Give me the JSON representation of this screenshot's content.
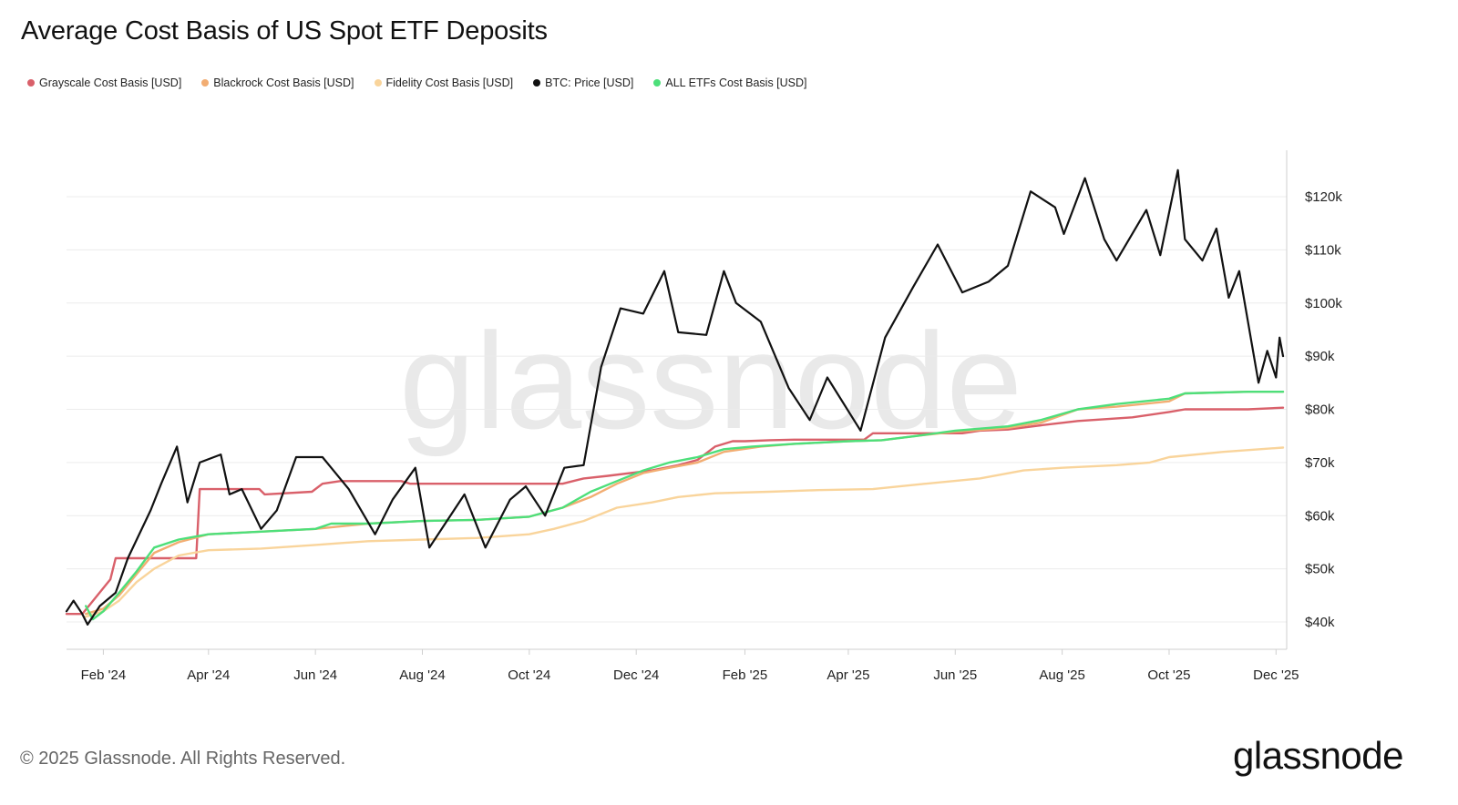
{
  "title": "Average Cost Basis of US Spot ETF Deposits",
  "legend": [
    {
      "label": "Grayscale Cost Basis [USD]",
      "color": "#d9606a"
    },
    {
      "label": "Blackrock Cost Basis [USD]",
      "color": "#f2ad72"
    },
    {
      "label": "Fidelity Cost Basis [USD]",
      "color": "#f9d49b"
    },
    {
      "label": "BTC: Price [USD]",
      "color": "#111111"
    },
    {
      "label": "ALL ETFs Cost Basis [USD]",
      "color": "#4ddf7a"
    }
  ],
  "watermark": "glassnode",
  "footer": "© 2025 Glassnode. All Rights Reserved.",
  "brand": "glassnode",
  "chart_data": {
    "type": "line",
    "title": "Average Cost Basis of US Spot ETF Deposits",
    "x_range": [
      "2024-01-11",
      "2025-12-05"
    ],
    "ylim": [
      35000,
      125000
    ],
    "y_ticks": [
      {
        "value": 40000,
        "label": "$40k"
      },
      {
        "value": 50000,
        "label": "$50k"
      },
      {
        "value": 60000,
        "label": "$60k"
      },
      {
        "value": 70000,
        "label": "$70k"
      },
      {
        "value": 80000,
        "label": "$80k"
      },
      {
        "value": 90000,
        "label": "$90k"
      },
      {
        "value": 100000,
        "label": "$100k"
      },
      {
        "value": 110000,
        "label": "$110k"
      },
      {
        "value": 120000,
        "label": "$120k"
      }
    ],
    "x_ticks": [
      {
        "date": "2024-02-01",
        "label": "Feb '24"
      },
      {
        "date": "2024-04-01",
        "label": "Apr '24"
      },
      {
        "date": "2024-06-01",
        "label": "Jun '24"
      },
      {
        "date": "2024-08-01",
        "label": "Aug '24"
      },
      {
        "date": "2024-10-01",
        "label": "Oct '24"
      },
      {
        "date": "2024-12-01",
        "label": "Dec '24"
      },
      {
        "date": "2025-02-01",
        "label": "Feb '25"
      },
      {
        "date": "2025-04-01",
        "label": "Apr '25"
      },
      {
        "date": "2025-06-01",
        "label": "Jun '25"
      },
      {
        "date": "2025-08-01",
        "label": "Aug '25"
      },
      {
        "date": "2025-10-01",
        "label": "Oct '25"
      },
      {
        "date": "2025-12-01",
        "label": "Dec '25"
      }
    ],
    "grid": true,
    "legend_position": "top-left",
    "series": [
      {
        "name": "Grayscale Cost Basis [USD]",
        "color": "#d9606a",
        "points": [
          [
            "2024-01-11",
            41500
          ],
          [
            "2024-01-20",
            41500
          ],
          [
            "2024-02-05",
            48000
          ],
          [
            "2024-02-08",
            52000
          ],
          [
            "2024-02-20",
            52000
          ],
          [
            "2024-03-25",
            52000
          ],
          [
            "2024-03-27",
            65000
          ],
          [
            "2024-04-30",
            65000
          ],
          [
            "2024-05-03",
            64000
          ],
          [
            "2024-05-30",
            64500
          ],
          [
            "2024-06-05",
            66000
          ],
          [
            "2024-06-15",
            66500
          ],
          [
            "2024-07-20",
            66500
          ],
          [
            "2024-07-25",
            66000
          ],
          [
            "2024-09-30",
            66000
          ],
          [
            "2024-10-10",
            66000
          ],
          [
            "2024-10-20",
            66000
          ],
          [
            "2024-11-01",
            67000
          ],
          [
            "2024-11-15",
            67500
          ],
          [
            "2024-12-10",
            68500
          ],
          [
            "2024-12-25",
            69500
          ],
          [
            "2025-01-05",
            70500
          ],
          [
            "2025-01-15",
            73000
          ],
          [
            "2025-01-25",
            74000
          ],
          [
            "2025-02-01",
            74000
          ],
          [
            "2025-02-15",
            74200
          ],
          [
            "2025-03-01",
            74300
          ],
          [
            "2025-04-10",
            74300
          ],
          [
            "2025-04-15",
            75500
          ],
          [
            "2025-06-05",
            75500
          ],
          [
            "2025-06-15",
            76000
          ],
          [
            "2025-07-01",
            76200
          ],
          [
            "2025-07-20",
            77000
          ],
          [
            "2025-08-10",
            77800
          ],
          [
            "2025-09-10",
            78500
          ],
          [
            "2025-10-01",
            79500
          ],
          [
            "2025-10-10",
            80000
          ],
          [
            "2025-11-15",
            80000
          ],
          [
            "2025-12-05",
            80300
          ]
        ]
      },
      {
        "name": "Blackrock Cost Basis [USD]",
        "color": "#f2ad72",
        "points": [
          [
            "2024-01-22",
            41500
          ],
          [
            "2024-02-01",
            42500
          ],
          [
            "2024-02-10",
            45000
          ],
          [
            "2024-02-20",
            49000
          ],
          [
            "2024-03-01",
            53000
          ],
          [
            "2024-03-15",
            55000
          ],
          [
            "2024-04-01",
            56500
          ],
          [
            "2024-05-01",
            57000
          ],
          [
            "2024-06-01",
            57500
          ],
          [
            "2024-07-01",
            58500
          ],
          [
            "2024-08-01",
            59000
          ],
          [
            "2024-09-01",
            59200
          ],
          [
            "2024-10-01",
            59800
          ],
          [
            "2024-10-20",
            61500
          ],
          [
            "2024-11-05",
            63500
          ],
          [
            "2024-11-20",
            66000
          ],
          [
            "2024-12-05",
            68000
          ],
          [
            "2024-12-20",
            69000
          ],
          [
            "2025-01-05",
            70000
          ],
          [
            "2025-01-20",
            72000
          ],
          [
            "2025-02-10",
            73000
          ],
          [
            "2025-03-01",
            73500
          ],
          [
            "2025-04-01",
            74000
          ],
          [
            "2025-04-20",
            74200
          ],
          [
            "2025-05-10",
            75000
          ],
          [
            "2025-06-01",
            75800
          ],
          [
            "2025-07-01",
            76500
          ],
          [
            "2025-07-20",
            77500
          ],
          [
            "2025-08-10",
            80000
          ],
          [
            "2025-09-01",
            80500
          ],
          [
            "2025-10-01",
            81500
          ],
          [
            "2025-10-10",
            83000
          ],
          [
            "2025-11-15",
            83300
          ],
          [
            "2025-12-05",
            83300
          ]
        ]
      },
      {
        "name": "Fidelity Cost Basis [USD]",
        "color": "#f9d49b",
        "points": [
          [
            "2024-01-22",
            41000
          ],
          [
            "2024-02-01",
            42000
          ],
          [
            "2024-02-10",
            44000
          ],
          [
            "2024-02-20",
            47500
          ],
          [
            "2024-03-01",
            50000
          ],
          [
            "2024-03-15",
            52500
          ],
          [
            "2024-04-01",
            53500
          ],
          [
            "2024-05-01",
            53800
          ],
          [
            "2024-06-01",
            54500
          ],
          [
            "2024-07-01",
            55200
          ],
          [
            "2024-08-01",
            55500
          ],
          [
            "2024-09-01",
            55800
          ],
          [
            "2024-10-01",
            56500
          ],
          [
            "2024-10-15",
            57500
          ],
          [
            "2024-11-01",
            59000
          ],
          [
            "2024-11-20",
            61500
          ],
          [
            "2024-12-10",
            62500
          ],
          [
            "2024-12-25",
            63500
          ],
          [
            "2025-01-15",
            64200
          ],
          [
            "2025-02-15",
            64500
          ],
          [
            "2025-03-15",
            64800
          ],
          [
            "2025-04-15",
            65000
          ],
          [
            "2025-05-15",
            66000
          ],
          [
            "2025-06-15",
            67000
          ],
          [
            "2025-07-10",
            68500
          ],
          [
            "2025-08-01",
            69000
          ],
          [
            "2025-09-01",
            69500
          ],
          [
            "2025-09-20",
            70000
          ],
          [
            "2025-10-01",
            71000
          ],
          [
            "2025-11-01",
            72000
          ],
          [
            "2025-12-05",
            72800
          ]
        ]
      },
      {
        "name": "ALL ETFs Cost Basis [USD]",
        "color": "#4ddf7a",
        "points": [
          [
            "2024-01-22",
            43000
          ],
          [
            "2024-01-26",
            40500
          ],
          [
            "2024-02-01",
            42000
          ],
          [
            "2024-02-10",
            45500
          ],
          [
            "2024-02-20",
            49500
          ],
          [
            "2024-03-01",
            54000
          ],
          [
            "2024-03-15",
            55500
          ],
          [
            "2024-04-01",
            56500
          ],
          [
            "2024-05-01",
            57000
          ],
          [
            "2024-06-01",
            57500
          ],
          [
            "2024-06-10",
            58500
          ],
          [
            "2024-07-01",
            58500
          ],
          [
            "2024-08-01",
            59000
          ],
          [
            "2024-09-01",
            59200
          ],
          [
            "2024-10-01",
            59800
          ],
          [
            "2024-10-20",
            61500
          ],
          [
            "2024-11-05",
            64500
          ],
          [
            "2024-11-20",
            66500
          ],
          [
            "2024-12-05",
            68500
          ],
          [
            "2024-12-20",
            70000
          ],
          [
            "2025-01-05",
            71000
          ],
          [
            "2025-01-20",
            72500
          ],
          [
            "2025-02-05",
            73000
          ],
          [
            "2025-03-01",
            73500
          ],
          [
            "2025-04-01",
            74000
          ],
          [
            "2025-04-20",
            74200
          ],
          [
            "2025-05-10",
            75000
          ],
          [
            "2025-06-01",
            76000
          ],
          [
            "2025-07-01",
            76800
          ],
          [
            "2025-07-20",
            78000
          ],
          [
            "2025-08-10",
            80000
          ],
          [
            "2025-09-01",
            81000
          ],
          [
            "2025-10-01",
            82000
          ],
          [
            "2025-10-10",
            83000
          ],
          [
            "2025-11-15",
            83300
          ],
          [
            "2025-12-05",
            83300
          ]
        ]
      },
      {
        "name": "BTC: Price [USD]",
        "color": "#111111",
        "points": [
          [
            "2024-01-11",
            42000
          ],
          [
            "2024-01-15",
            44000
          ],
          [
            "2024-01-20",
            41500
          ],
          [
            "2024-01-23",
            39500
          ],
          [
            "2024-01-30",
            43000
          ],
          [
            "2024-02-08",
            45500
          ],
          [
            "2024-02-15",
            52000
          ],
          [
            "2024-02-28",
            61000
          ],
          [
            "2024-03-05",
            66000
          ],
          [
            "2024-03-14",
            73000
          ],
          [
            "2024-03-20",
            62500
          ],
          [
            "2024-03-27",
            70000
          ],
          [
            "2024-04-08",
            71500
          ],
          [
            "2024-04-13",
            64000
          ],
          [
            "2024-04-20",
            65000
          ],
          [
            "2024-05-01",
            57500
          ],
          [
            "2024-05-10",
            61000
          ],
          [
            "2024-05-21",
            71000
          ],
          [
            "2024-06-05",
            71000
          ],
          [
            "2024-06-20",
            65000
          ],
          [
            "2024-07-05",
            56500
          ],
          [
            "2024-07-15",
            63000
          ],
          [
            "2024-07-28",
            69000
          ],
          [
            "2024-08-05",
            54000
          ],
          [
            "2024-08-15",
            59000
          ],
          [
            "2024-08-25",
            64000
          ],
          [
            "2024-09-06",
            54000
          ],
          [
            "2024-09-20",
            63000
          ],
          [
            "2024-09-29",
            65500
          ],
          [
            "2024-10-10",
            60000
          ],
          [
            "2024-10-21",
            69000
          ],
          [
            "2024-11-01",
            69500
          ],
          [
            "2024-11-11",
            88000
          ],
          [
            "2024-11-22",
            99000
          ],
          [
            "2024-12-05",
            98000
          ],
          [
            "2024-12-17",
            106000
          ],
          [
            "2024-12-25",
            94500
          ],
          [
            "2025-01-10",
            94000
          ],
          [
            "2025-01-20",
            106000
          ],
          [
            "2025-01-27",
            100000
          ],
          [
            "2025-02-10",
            96500
          ],
          [
            "2025-02-26",
            84000
          ],
          [
            "2025-03-10",
            78000
          ],
          [
            "2025-03-20",
            86000
          ],
          [
            "2025-04-08",
            76000
          ],
          [
            "2025-04-22",
            93500
          ],
          [
            "2025-05-08",
            103000
          ],
          [
            "2025-05-22",
            111000
          ],
          [
            "2025-06-05",
            102000
          ],
          [
            "2025-06-20",
            104000
          ],
          [
            "2025-07-01",
            107000
          ],
          [
            "2025-07-14",
            121000
          ],
          [
            "2025-07-28",
            118000
          ],
          [
            "2025-08-02",
            113000
          ],
          [
            "2025-08-14",
            123500
          ],
          [
            "2025-08-25",
            112000
          ],
          [
            "2025-09-01",
            108000
          ],
          [
            "2025-09-18",
            117500
          ],
          [
            "2025-09-26",
            109000
          ],
          [
            "2025-10-06",
            125000
          ],
          [
            "2025-10-10",
            112000
          ],
          [
            "2025-10-20",
            108000
          ],
          [
            "2025-10-28",
            114000
          ],
          [
            "2025-11-04",
            101000
          ],
          [
            "2025-11-10",
            106000
          ],
          [
            "2025-11-21",
            85000
          ],
          [
            "2025-11-26",
            91000
          ],
          [
            "2025-12-01",
            86000
          ],
          [
            "2025-12-03",
            93500
          ],
          [
            "2025-12-05",
            90000
          ]
        ]
      }
    ]
  }
}
